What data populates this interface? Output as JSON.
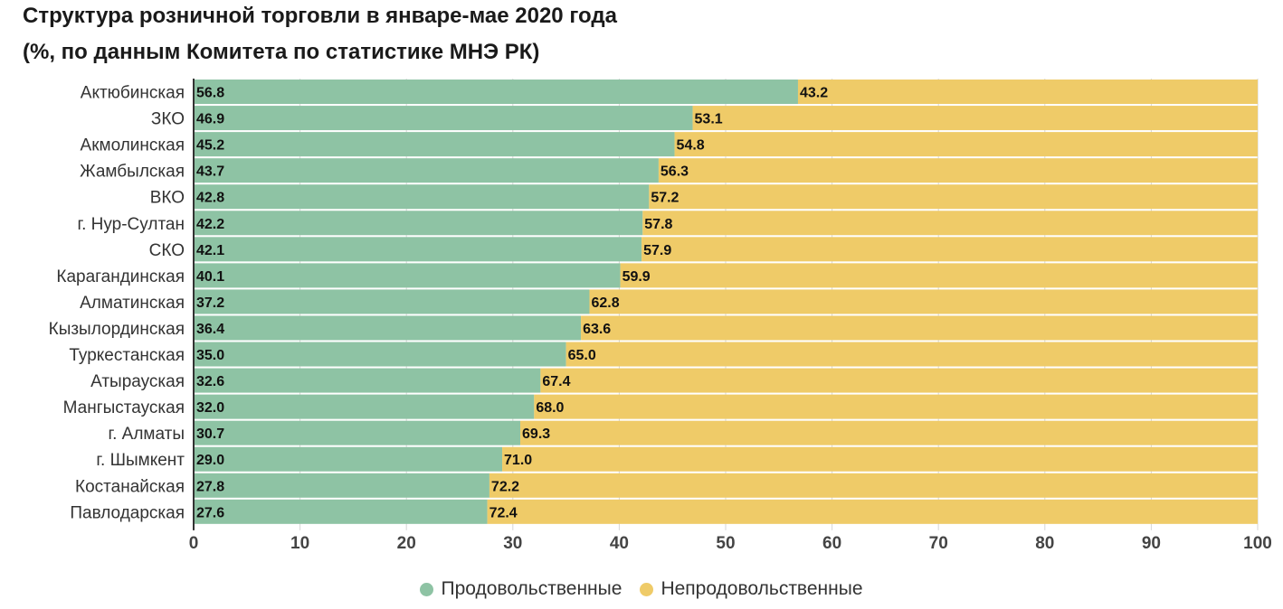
{
  "title": "Структура розничной торговли в январе-мае 2020 года",
  "subtitle": "(%, по данным Комитета по статистике МНЭ РК)",
  "colors": {
    "food": "#8ec3a4",
    "nonfood": "#efcb68",
    "grid": "#d6d6d6",
    "axis": "#333333"
  },
  "legend": [
    {
      "label": "Продовольственные",
      "color": "#8ec3a4"
    },
    {
      "label": "Непродовольственные",
      "color": "#efcb68"
    }
  ],
  "chart_data": {
    "type": "bar",
    "orientation": "horizontal",
    "stacked": true,
    "categories": [
      "Актюбинская",
      "ЗКО",
      "Акмолинская",
      "Жамбылская",
      "ВКО",
      "г. Нур-Султан",
      "СКО",
      "Карагандинская",
      "Алматинская",
      "Кызылординская",
      "Туркестанская",
      "Атырауская",
      "Мангыстауская",
      "г. Алматы",
      "г. Шымкент",
      "Костанайская",
      "Павлодарская"
    ],
    "series": [
      {
        "name": "Продовольственные",
        "values": [
          "56.8",
          "46.9",
          "45.2",
          "43.7",
          "42.8",
          "42.2",
          "42.1",
          "40.1",
          "37.2",
          "36.4",
          "35.0",
          "32.6",
          "32.0",
          "30.7",
          "29.0",
          "27.8",
          "27.6"
        ]
      },
      {
        "name": "Непродовольственные",
        "values": [
          "43.2",
          "53.1",
          "54.8",
          "56.3",
          "57.2",
          "57.8",
          "57.9",
          "59.9",
          "62.8",
          "63.6",
          "65.0",
          "67.4",
          "68.0",
          "69.3",
          "71.0",
          "72.2",
          "72.4"
        ]
      }
    ],
    "xlim": [
      0,
      100
    ],
    "xticks": [
      "0",
      "10",
      "20",
      "30",
      "40",
      "50",
      "60",
      "70",
      "80",
      "90",
      "100"
    ],
    "grid": true,
    "legend_position": "bottom"
  }
}
